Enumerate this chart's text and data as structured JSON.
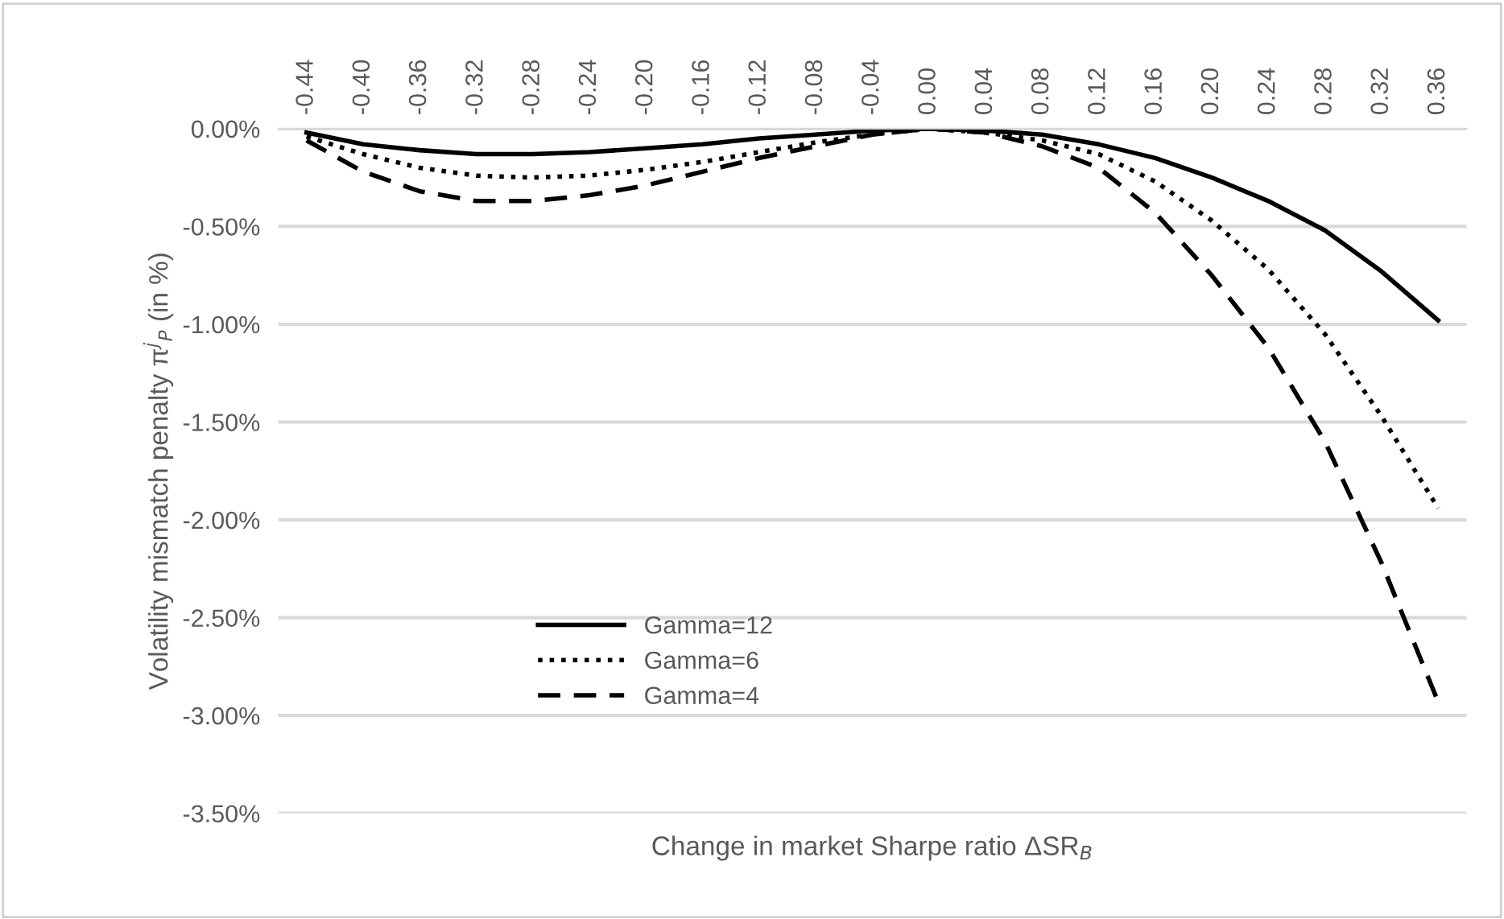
{
  "chart_data": {
    "type": "line",
    "xlabel": "Change in market Sharpe ratio ΔSR$_{B}$",
    "ylabel": "Volatility mismatch penalty π$^{j}$$_{P}$ (in %)",
    "categories": [
      "-0.44",
      "-0.40",
      "-0.36",
      "-0.32",
      "-0.28",
      "-0.24",
      "-0.20",
      "-0.16",
      "-0.12",
      "-0.08",
      "-0.04",
      "0.00",
      "0.04",
      "0.08",
      "0.12",
      "0.16",
      "0.20",
      "0.24",
      "0.28",
      "0.32",
      "0.36"
    ],
    "series": [
      {
        "name": "Gamma=12",
        "color": "#000000",
        "line_style": "solid",
        "values": [
          -0.02,
          -0.08,
          -0.11,
          -0.13,
          -0.13,
          -0.12,
          -0.1,
          -0.08,
          -0.05,
          -0.03,
          -0.01,
          0,
          -0.01,
          -0.03,
          -0.08,
          -0.15,
          -0.25,
          -0.37,
          -0.52,
          -0.73,
          -0.98
        ]
      },
      {
        "name": "Gamma=6",
        "color": "#000000",
        "line_style": "dotted",
        "values": [
          -0.04,
          -0.13,
          -0.2,
          -0.24,
          -0.25,
          -0.24,
          -0.21,
          -0.17,
          -0.12,
          -0.07,
          -0.03,
          0,
          -0.02,
          -0.06,
          -0.13,
          -0.27,
          -0.47,
          -0.72,
          -1.05,
          -1.47,
          -1.94
        ]
      },
      {
        "name": "Gamma=4",
        "color": "#000000",
        "line_style": "dashed",
        "values": [
          -0.06,
          -0.22,
          -0.32,
          -0.37,
          -0.37,
          -0.34,
          -0.29,
          -0.22,
          -0.15,
          -0.09,
          -0.03,
          0,
          -0.02,
          -0.09,
          -0.2,
          -0.43,
          -0.75,
          -1.12,
          -1.6,
          -2.22,
          -2.93
        ]
      }
    ],
    "ylim": [
      -3.5,
      0
    ],
    "yticks": [
      {
        "value": 0,
        "label": "0.00%"
      },
      {
        "value": -0.5,
        "label": "-0.50%"
      },
      {
        "value": -1,
        "label": "-1.00%"
      },
      {
        "value": -1.5,
        "label": "-1.50%"
      },
      {
        "value": -2,
        "label": "-2.00%"
      },
      {
        "value": -2.5,
        "label": "-2.50%"
      },
      {
        "value": -3,
        "label": "-3.00%"
      },
      {
        "value": -3.5,
        "label": "-3.50%"
      }
    ],
    "grid": "y",
    "legend": "bottom left",
    "marker": "none"
  }
}
